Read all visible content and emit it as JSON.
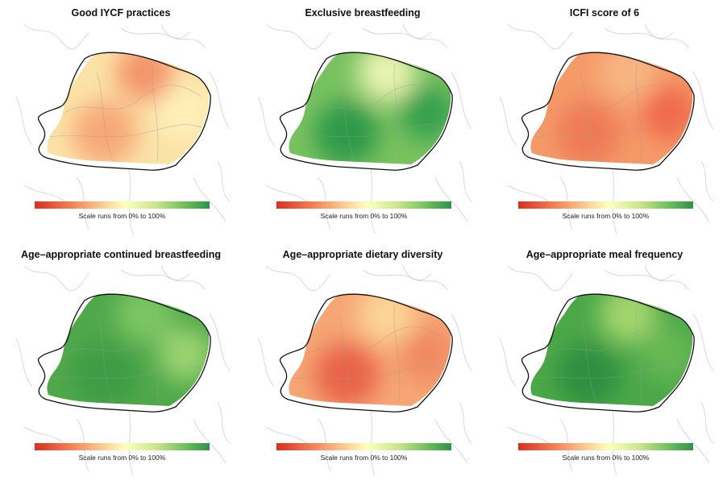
{
  "scale_caption": "Scale runs from 0% to 100%",
  "scale": {
    "min_percent": 0,
    "max_percent": 100,
    "colors": [
      "#d7301f",
      "#fdd99b",
      "#ffffbf",
      "#2b9348"
    ]
  },
  "panels": [
    {
      "title": "Good IYCF practices",
      "fill": "#fbe2a6",
      "blobs": [
        "#f7a878",
        "#f4956c",
        "#fff0b8"
      ]
    },
    {
      "title": "Exclusive breastfeeding",
      "fill": "#79c25f",
      "blobs": [
        "#2e9a4a",
        "#e8f3b0",
        "#34a04d"
      ]
    },
    {
      "title": "ICFI score of 6",
      "fill": "#f59a69",
      "blobs": [
        "#ef7a55",
        "#f7b583",
        "#f06a4c"
      ]
    },
    {
      "title": "Age–appropriate continued breastfeeding",
      "fill": "#4fa84a",
      "blobs": [
        "#3d9c45",
        "#7cc663",
        "#9ad36f"
      ]
    },
    {
      "title": "Age–appropriate dietary diversity",
      "fill": "#f6a674",
      "blobs": [
        "#e96448",
        "#fbd596",
        "#f08a60"
      ]
    },
    {
      "title": "Age–appropriate meal frequency",
      "fill": "#4ba848",
      "blobs": [
        "#2d8f40",
        "#a2d56e",
        "#66b853"
      ]
    }
  ]
}
